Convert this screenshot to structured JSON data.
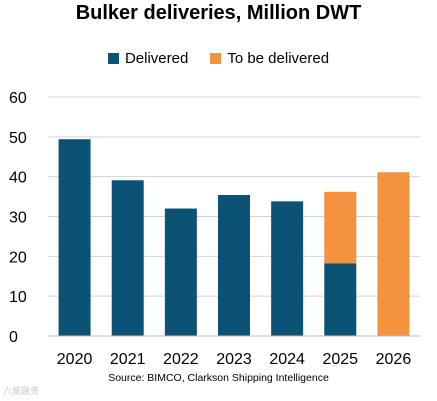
{
  "chart_data": {
    "type": "bar",
    "stacked": true,
    "title": "Bulker deliveries, Million DWT",
    "categories": [
      "2020",
      "2021",
      "2022",
      "2023",
      "2024",
      "2025",
      "2026"
    ],
    "series": [
      {
        "name": "Delivered",
        "color": "#0b5275",
        "values": [
          49.4,
          39.1,
          32.0,
          35.4,
          33.8,
          18.2,
          0
        ]
      },
      {
        "name": "To be delivered",
        "color": "#f5923d",
        "values": [
          0,
          0,
          0,
          0,
          0,
          18.0,
          41.1
        ]
      }
    ],
    "ylim": [
      0,
      60
    ],
    "yticks": [
      0,
      10,
      20,
      30,
      40,
      50,
      60
    ],
    "ytick_labels": [
      "0",
      "10",
      "20",
      "30",
      "40",
      "50",
      "60"
    ],
    "grid": true,
    "legend_position": "top-center",
    "source": "Source: BIMCO, Clarkson Shipping Intelligence"
  },
  "watermark": "六度融资"
}
